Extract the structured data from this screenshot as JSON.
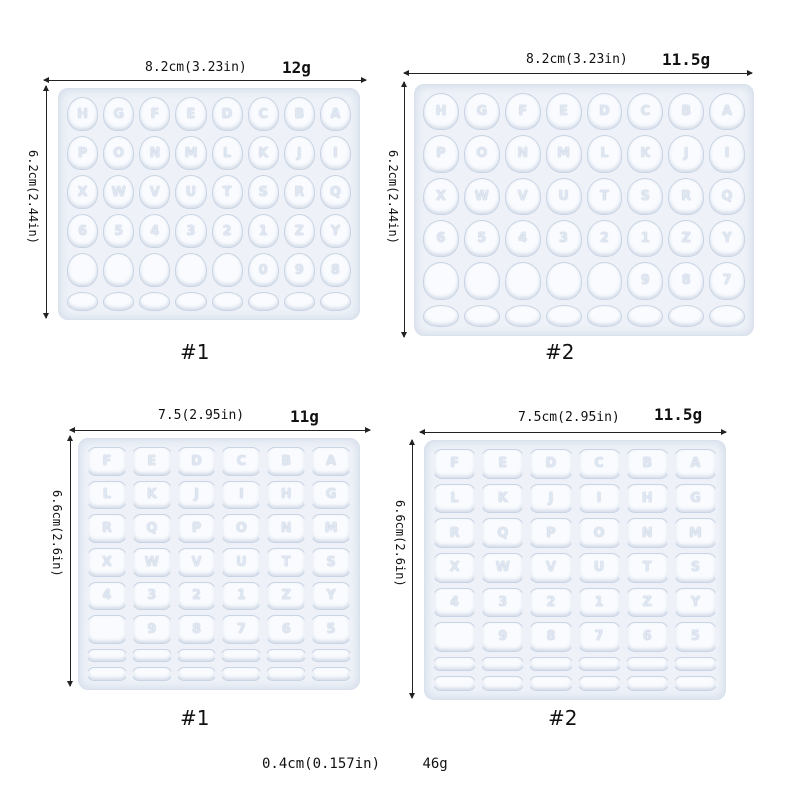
{
  "molds": [
    {
      "id": "top-left",
      "width_label": "8.2cm(3.23in)",
      "weight": "12g",
      "height_label": "6.2cm(2.44in)",
      "number": "#1",
      "columns": 8,
      "shape": "round",
      "letters": [
        "H",
        "G",
        "F",
        "E",
        "D",
        "C",
        "B",
        "A",
        "P",
        "O",
        "N",
        "M",
        "L",
        "K",
        "J",
        "I",
        "X",
        "W",
        "V",
        "U",
        "T",
        "S",
        "R",
        "Q",
        "6",
        "5",
        "4",
        "3",
        "2",
        "1",
        "Z",
        "Y",
        "",
        "",
        "",
        "",
        "",
        "0",
        "9",
        "8",
        "",
        "",
        "",
        "",
        "",
        "",
        "",
        ""
      ]
    },
    {
      "id": "top-right",
      "width_label": "8.2cm(3.23in)",
      "weight": "11.5g",
      "height_label": "6.2cm(2.44in)",
      "number": "#2",
      "columns": 8,
      "shape": "round",
      "letters": [
        "H",
        "G",
        "F",
        "E",
        "D",
        "C",
        "B",
        "A",
        "P",
        "O",
        "N",
        "M",
        "L",
        "K",
        "J",
        "I",
        "X",
        "W",
        "V",
        "U",
        "T",
        "S",
        "R",
        "Q",
        "6",
        "5",
        "4",
        "3",
        "2",
        "1",
        "Z",
        "Y",
        "",
        "",
        "",
        "",
        "",
        "9",
        "8",
        "7",
        "",
        "",
        "",
        "",
        "",
        "",
        "",
        ""
      ]
    },
    {
      "id": "bottom-left",
      "width_label": "7.5(2.95in)",
      "weight": "11g",
      "height_label": "6.6cm(2.6in)",
      "number": "#1",
      "columns": 6,
      "shape": "bone",
      "letters": [
        "F",
        "E",
        "D",
        "C",
        "B",
        "A",
        "L",
        "K",
        "J",
        "I",
        "H",
        "G",
        "R",
        "Q",
        "P",
        "O",
        "N",
        "M",
        "X",
        "W",
        "V",
        "U",
        "T",
        "S",
        "4",
        "3",
        "2",
        "1",
        "Z",
        "Y",
        "",
        "9",
        "8",
        "7",
        "6",
        "5",
        "",
        "",
        "",
        "",
        "",
        "",
        "",
        "",
        "",
        "",
        "",
        ""
      ]
    },
    {
      "id": "bottom-right",
      "width_label": "7.5cm(2.95in)",
      "weight": "11.5g",
      "height_label": "6.6cm(2.6in)",
      "number": "#2",
      "columns": 6,
      "shape": "bone",
      "letters": [
        "F",
        "E",
        "D",
        "C",
        "B",
        "A",
        "L",
        "K",
        "J",
        "I",
        "H",
        "G",
        "R",
        "Q",
        "P",
        "O",
        "N",
        "M",
        "X",
        "W",
        "V",
        "U",
        "T",
        "S",
        "4",
        "3",
        "2",
        "1",
        "Z",
        "Y",
        "",
        "9",
        "8",
        "7",
        "6",
        "5",
        "",
        "",
        "",
        "",
        "",
        "",
        "",
        "",
        "",
        "",
        "",
        ""
      ]
    }
  ],
  "footer": {
    "thickness": "0.4cm(0.157in)",
    "total_weight": "46g"
  }
}
